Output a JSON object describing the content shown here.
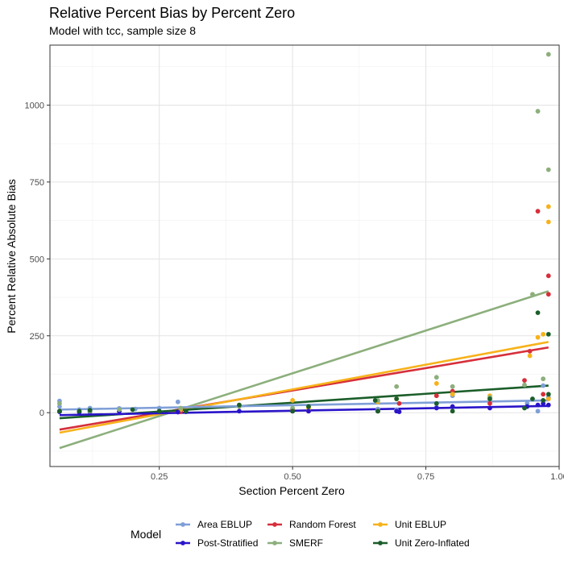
{
  "chart_data": {
    "type": "scatter",
    "title": "Relative Percent Bias by Percent Zero",
    "subtitle": "Model with tcc, sample size 8",
    "xlabel": "Section Percent Zero",
    "ylabel": "Percent Relative Absolute Bias",
    "xlim": [
      0.045,
      1.0
    ],
    "ylim": [
      -175,
      1195
    ],
    "x_ticks": [
      0.25,
      0.5,
      0.75,
      1.0
    ],
    "x_tick_labels": [
      "0.25",
      "0.50",
      "0.75",
      "1.00"
    ],
    "y_ticks": [
      0,
      250,
      500,
      750,
      1000
    ],
    "y_tick_labels": [
      "0",
      "250",
      "500",
      "750",
      "1000"
    ],
    "grid": true,
    "legend": {
      "title": "Model",
      "position": "bottom",
      "entries": [
        "Area EBLUP",
        "Random Forest",
        "Unit EBLUP",
        "Post-Stratified",
        "SMERF",
        "Unit Zero-Inflated"
      ]
    },
    "series": [
      {
        "name": "Area EBLUP",
        "color": "#7f9fd8",
        "points": [
          [
            0.063,
            38
          ],
          [
            0.063,
            20
          ],
          [
            0.1,
            10
          ],
          [
            0.12,
            15
          ],
          [
            0.175,
            14
          ],
          [
            0.205,
            12
          ],
          [
            0.25,
            15
          ],
          [
            0.285,
            35
          ],
          [
            0.5,
            8
          ],
          [
            0.5,
            12
          ],
          [
            0.53,
            10
          ],
          [
            0.66,
            12
          ],
          [
            0.695,
            10
          ],
          [
            0.77,
            18
          ],
          [
            0.8,
            55
          ],
          [
            0.87,
            45
          ],
          [
            0.94,
            30
          ],
          [
            0.96,
            5
          ],
          [
            0.97,
            88
          ],
          [
            0.98,
            50
          ]
        ],
        "trend": [
          [
            0.063,
            10
          ],
          [
            0.98,
            40
          ]
        ]
      },
      {
        "name": "Random Forest",
        "color": "#d62f3b",
        "points": [
          [
            0.063,
            5
          ],
          [
            0.29,
            3
          ],
          [
            0.5,
            10
          ],
          [
            0.53,
            5
          ],
          [
            0.66,
            5
          ],
          [
            0.7,
            30
          ],
          [
            0.77,
            55
          ],
          [
            0.8,
            70
          ],
          [
            0.87,
            30
          ],
          [
            0.935,
            105
          ],
          [
            0.945,
            200
          ],
          [
            0.96,
            655
          ],
          [
            0.97,
            60
          ],
          [
            0.98,
            445
          ],
          [
            0.98,
            385
          ]
        ],
        "trend": [
          [
            0.063,
            -55
          ],
          [
            0.98,
            212
          ]
        ]
      },
      {
        "name": "Unit EBLUP",
        "color": "#f7b21a",
        "points": [
          [
            0.063,
            5
          ],
          [
            0.29,
            10
          ],
          [
            0.4,
            25
          ],
          [
            0.5,
            40
          ],
          [
            0.53,
            15
          ],
          [
            0.66,
            35
          ],
          [
            0.695,
            45
          ],
          [
            0.77,
            95
          ],
          [
            0.8,
            60
          ],
          [
            0.87,
            55
          ],
          [
            0.945,
            185
          ],
          [
            0.96,
            245
          ],
          [
            0.97,
            255
          ],
          [
            0.98,
            670
          ],
          [
            0.98,
            620
          ],
          [
            0.98,
            45
          ]
        ],
        "trend": [
          [
            0.063,
            -65
          ],
          [
            0.98,
            230
          ]
        ]
      },
      {
        "name": "Post-Stratified",
        "color": "#2a14c9",
        "points": [
          [
            0.063,
            3
          ],
          [
            0.1,
            2
          ],
          [
            0.12,
            3
          ],
          [
            0.175,
            4
          ],
          [
            0.285,
            2
          ],
          [
            0.3,
            3
          ],
          [
            0.4,
            5
          ],
          [
            0.5,
            5
          ],
          [
            0.53,
            5
          ],
          [
            0.66,
            5
          ],
          [
            0.695,
            5
          ],
          [
            0.7,
            3
          ],
          [
            0.77,
            15
          ],
          [
            0.8,
            20
          ],
          [
            0.87,
            15
          ],
          [
            0.94,
            20
          ],
          [
            0.96,
            25
          ],
          [
            0.97,
            30
          ],
          [
            0.98,
            25
          ]
        ],
        "trend": [
          [
            0.063,
            -8
          ],
          [
            0.98,
            22
          ]
        ]
      },
      {
        "name": "SMERF",
        "color": "#8caf7c",
        "points": [
          [
            0.063,
            30
          ],
          [
            0.12,
            5
          ],
          [
            0.175,
            10
          ],
          [
            0.29,
            15
          ],
          [
            0.4,
            20
          ],
          [
            0.5,
            15
          ],
          [
            0.53,
            20
          ],
          [
            0.66,
            40
          ],
          [
            0.695,
            85
          ],
          [
            0.77,
            115
          ],
          [
            0.8,
            85
          ],
          [
            0.87,
            50
          ],
          [
            0.935,
            90
          ],
          [
            0.95,
            385
          ],
          [
            0.96,
            980
          ],
          [
            0.97,
            110
          ],
          [
            0.98,
            1165
          ],
          [
            0.98,
            790
          ]
        ],
        "trend": [
          [
            0.063,
            -115
          ],
          [
            0.98,
            395
          ]
        ]
      },
      {
        "name": "Unit Zero-Inflated",
        "color": "#1b5e2a",
        "points": [
          [
            0.063,
            5
          ],
          [
            0.1,
            5
          ],
          [
            0.12,
            8
          ],
          [
            0.2,
            10
          ],
          [
            0.25,
            5
          ],
          [
            0.3,
            5
          ],
          [
            0.4,
            25
          ],
          [
            0.5,
            5
          ],
          [
            0.53,
            20
          ],
          [
            0.655,
            40
          ],
          [
            0.66,
            5
          ],
          [
            0.695,
            45
          ],
          [
            0.77,
            30
          ],
          [
            0.8,
            5
          ],
          [
            0.87,
            45
          ],
          [
            0.935,
            15
          ],
          [
            0.95,
            45
          ],
          [
            0.96,
            325
          ],
          [
            0.97,
            40
          ],
          [
            0.98,
            255
          ],
          [
            0.98,
            60
          ]
        ],
        "trend": [
          [
            0.063,
            -18
          ],
          [
            0.98,
            88
          ]
        ]
      }
    ]
  }
}
